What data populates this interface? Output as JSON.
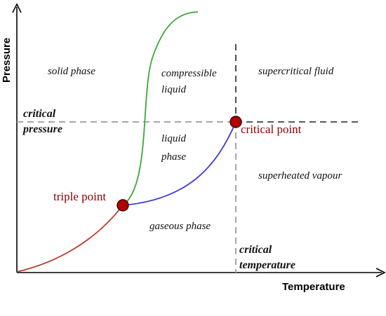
{
  "axes": {
    "x_title": "Temperature",
    "y_title": "Pressure"
  },
  "regions": {
    "solid": "solid phase",
    "compressible_line1": "compressible",
    "compressible_line2": "liquid",
    "supercritical": "supercritical fluid",
    "liquid_line1": "liquid",
    "liquid_line2": "phase",
    "superheated": "superheated vapour",
    "gaseous": "gaseous phase"
  },
  "critical": {
    "pressure_line1": "critical",
    "pressure_line2": "pressure",
    "temperature_line1": "critical",
    "temperature_line2": "temperature"
  },
  "points": {
    "triple": "triple point",
    "critical": "critical point"
  },
  "colors": {
    "sublimation_curve": "#c0392b",
    "melting_curve": "#3aa83a",
    "vaporization_curve": "#3b3bdf",
    "point_fill": "#b00000",
    "dashed_gray": "#a6a6a6",
    "dashed_black": "#222222"
  }
}
